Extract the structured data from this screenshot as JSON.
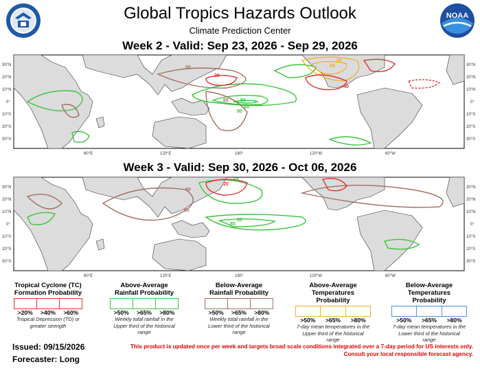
{
  "header": {
    "title": "Global Tropics Hazards Outlook",
    "subtitle": "Climate Prediction Center",
    "noaa_logo_text": "NOAA"
  },
  "panels": [
    {
      "title": "Week 2 - Valid: Sep 23, 2026 - Sep 29, 2026",
      "features": [
        {
          "type": "precip_above",
          "label": "50"
        },
        {
          "type": "precip_above",
          "label": "65"
        },
        {
          "type": "precip_above",
          "label": "80"
        },
        {
          "type": "precip_below",
          "label": "50"
        },
        {
          "type": "precip_below",
          "label": "65"
        },
        {
          "type": "tc",
          "label": "20"
        },
        {
          "type": "tc",
          "label": "40"
        },
        {
          "type": "temp_above",
          "label": "50"
        },
        {
          "type": "temp_above",
          "label": "65"
        }
      ]
    },
    {
      "title": "Week 3 - Valid: Sep 30, 2026 - Oct 06, 2026",
      "features": [
        {
          "type": "precip_above",
          "label": "50"
        },
        {
          "type": "precip_above",
          "label": "65"
        },
        {
          "type": "precip_above",
          "label": "80"
        },
        {
          "type": "precip_below",
          "label": "50"
        },
        {
          "type": "precip_below",
          "label": "65"
        },
        {
          "type": "tc",
          "label": "20"
        }
      ]
    }
  ],
  "map_axes": {
    "lat_labels": [
      "30°N",
      "20°N",
      "10°N",
      "0°",
      "10°S",
      "20°S",
      "30°S"
    ],
    "lat_labels_right": [
      "30°N",
      "20°N",
      "10°N",
      "0°",
      "10°S",
      "20°S",
      "30°S"
    ],
    "lon_labels": [
      "60°E",
      "120°E",
      "180°",
      "120°W",
      "60°W"
    ]
  },
  "legend": [
    {
      "title": "Tropical Cyclone (TC) Formation Probability",
      "labels": [
        ">20%",
        ">40%",
        ">60%"
      ],
      "note": "Tropical Depression (TD) or greater strength",
      "color": "#e03030"
    },
    {
      "title": "Above-Average Rainfall Probability",
      "labels": [
        ">50%",
        ">65%",
        ">80%"
      ],
      "note": "Weekly total rainfall in the Upper third of the historical range",
      "color": "#3cc43c"
    },
    {
      "title": "Below-Average Rainfall Probability",
      "labels": [
        ">50%",
        ">65%",
        ">80%"
      ],
      "note": "Weekly total rainfall in the Lower third of the historical range",
      "color": "#a07060"
    },
    {
      "title": "Above-Average Temperatures Probability",
      "labels": [
        ">50%",
        ">65%",
        ">80%"
      ],
      "note": "7-day mean temperatures in the Upper third of the historical range",
      "color": "#f0b020"
    },
    {
      "title": "Below-Average Temperatures Probability",
      "labels": [
        ">50%",
        ">65%",
        ">80%"
      ],
      "note": "7-day mean temperatures in the Lower third of the historical range",
      "color": "#4a90e2"
    }
  ],
  "footer": {
    "issued": "Issued: 09/15/2026",
    "forecaster": "Forecaster: Long",
    "disclaimer_line1": "This product is updated once per week and targets broad scale conditions integrated over a 7-day period for US interests only.",
    "disclaimer_line2": "Consult your local responsible forecast agency."
  }
}
